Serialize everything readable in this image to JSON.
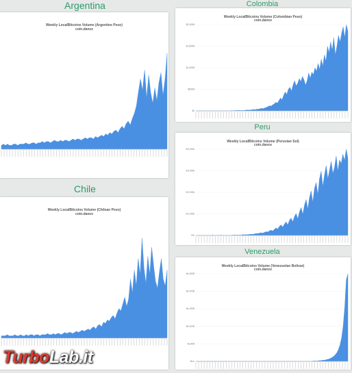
{
  "watermark": {
    "part1": "Turbo",
    "part2": "Lab",
    "part3": ".it"
  },
  "chart_data": [
    {
      "type": "area",
      "country": "Argentina",
      "title": "Weekly LocalBitcoins Volume (Argentine Peso)",
      "subtitle": "coin.dance",
      "series": [
        {
          "values": [
            3,
            4,
            3,
            4,
            3,
            3,
            4,
            4,
            3,
            4,
            4,
            4,
            5,
            4,
            4,
            5,
            5,
            4,
            5,
            5,
            6,
            5,
            6,
            6,
            5,
            6,
            7,
            6,
            6,
            7,
            6,
            7,
            7,
            6,
            7,
            8,
            7,
            8,
            8,
            7,
            8,
            9,
            8,
            9,
            9,
            8,
            10,
            9,
            10,
            11,
            10,
            12,
            11,
            13,
            12,
            14,
            15,
            13,
            16,
            18,
            16,
            20,
            22,
            19,
            24,
            28,
            34,
            45,
            55,
            46,
            62,
            40,
            58,
            44,
            36,
            48,
            38,
            52,
            60,
            42,
            55,
            75
          ]
        }
      ],
      "color": "#4a90e2"
    },
    {
      "type": "area",
      "country": "Colombia",
      "title": "Weekly LocalBitcoins Volume (Colombian Peso)",
      "subtitle": "coin.dance",
      "y_ticks": [
        "$2,000M",
        "$1,500M",
        "$1,000M",
        "$500M",
        "$0"
      ],
      "series": [
        {
          "values": [
            0,
            0,
            0,
            0,
            0,
            0,
            0,
            0,
            0,
            0,
            0,
            0,
            0,
            0,
            0,
            0,
            0,
            0,
            0,
            0,
            0,
            0,
            0,
            1,
            0,
            1,
            1,
            1,
            1,
            1,
            1,
            1,
            2,
            2,
            2,
            2,
            3,
            3,
            3,
            4,
            4,
            5,
            6,
            5,
            7,
            8,
            10,
            12,
            11,
            14,
            16,
            20,
            18,
            24,
            30,
            26,
            36,
            44,
            38,
            50,
            55,
            46,
            60,
            70,
            58,
            64,
            75,
            68,
            80,
            72,
            60,
            70,
            88,
            76,
            90,
            84,
            100,
            92,
            110,
            96,
            120,
            104,
            130,
            115,
            150,
            135,
            160,
            140,
            170,
            130,
            150,
            175,
            160,
            180,
            195,
            170,
            200,
            185
          ]
        }
      ],
      "color": "#4a90e2"
    },
    {
      "type": "area",
      "country": "Peru",
      "title": "Weekly LocalBitcoins Volume (Peruvian Sol)",
      "subtitle": "coin.dance",
      "y_ticks": [
        "S/4,000k",
        "S/3,000k",
        "S/2,000k",
        "S/1,000k",
        "S/0"
      ],
      "series": [
        {
          "values": [
            0,
            0,
            0,
            0,
            0,
            0,
            0,
            0,
            0,
            0,
            1,
            0,
            0,
            0,
            0,
            1,
            0,
            0,
            0,
            0,
            0,
            0,
            1,
            1,
            1,
            1,
            1,
            1,
            2,
            2,
            2,
            2,
            3,
            3,
            3,
            4,
            5,
            5,
            6,
            7,
            6,
            8,
            10,
            9,
            12,
            14,
            12,
            16,
            20,
            17,
            24,
            28,
            22,
            30,
            36,
            28,
            40,
            46,
            36,
            50,
            58,
            44,
            62,
            74,
            56,
            80,
            95,
            70,
            100,
            118,
            88,
            124,
            140,
            108,
            150,
            170,
            130,
            160,
            185,
            150,
            172,
            196,
            164,
            180,
            210,
            170,
            200,
            190,
            215,
            198,
            228,
            205
          ]
        }
      ],
      "color": "#4a90e2"
    },
    {
      "type": "area",
      "country": "Chile",
      "title": "Weekly LocalBitcoins Volume (Chilean Peso)",
      "subtitle": "coin.dance",
      "series": [
        {
          "values": [
            2,
            2,
            2,
            3,
            2,
            2,
            2,
            3,
            2,
            2,
            3,
            2,
            2,
            3,
            2,
            3,
            3,
            2,
            3,
            3,
            2,
            3,
            3,
            3,
            4,
            3,
            3,
            4,
            3,
            4,
            4,
            3,
            4,
            5,
            4,
            5,
            5,
            4,
            5,
            6,
            5,
            6,
            7,
            6,
            7,
            8,
            7,
            9,
            10,
            8,
            11,
            12,
            10,
            14,
            13,
            16,
            15,
            18,
            20,
            17,
            22,
            26,
            24,
            30,
            36,
            28,
            34,
            52,
            40,
            60,
            46,
            70,
            56,
            88,
            62,
            48,
            72,
            56,
            80,
            64,
            50,
            44,
            58,
            70,
            52,
            46,
            60
          ]
        }
      ],
      "color": "#4a90e2"
    },
    {
      "type": "area",
      "country": "Venezuela",
      "title": "Weekly LocalBitcoins Volume (Venezuelan Bolivar)",
      "subtitle": "coin.dance",
      "y_ticks": [
        "Bs.250B",
        "Bs.200B",
        "Bs.150B",
        "Bs.100B",
        "Bs.50B",
        "Bs.0"
      ],
      "series": [
        {
          "values": [
            0,
            0,
            0,
            0,
            0,
            0,
            0,
            0,
            0,
            0,
            0,
            0,
            0,
            0,
            0,
            0,
            0,
            0,
            0,
            0,
            0,
            0,
            0,
            0,
            0,
            0,
            0,
            0,
            0,
            0,
            0,
            0,
            0,
            0,
            0,
            0,
            0,
            0,
            0,
            0,
            0,
            0,
            0,
            0,
            0,
            0,
            0,
            0,
            0,
            0,
            0,
            0,
            0,
            0,
            0,
            0,
            0,
            0,
            0,
            0,
            0,
            0,
            0,
            0,
            0,
            0,
            0,
            0,
            0,
            0,
            0,
            0,
            0,
            0,
            1,
            1,
            1,
            1,
            2,
            2,
            3,
            3,
            4,
            5,
            6,
            8,
            10,
            13,
            17,
            22,
            30,
            42,
            60,
            90,
            140,
            210,
            225
          ]
        }
      ],
      "color": "#4a90e2"
    }
  ]
}
